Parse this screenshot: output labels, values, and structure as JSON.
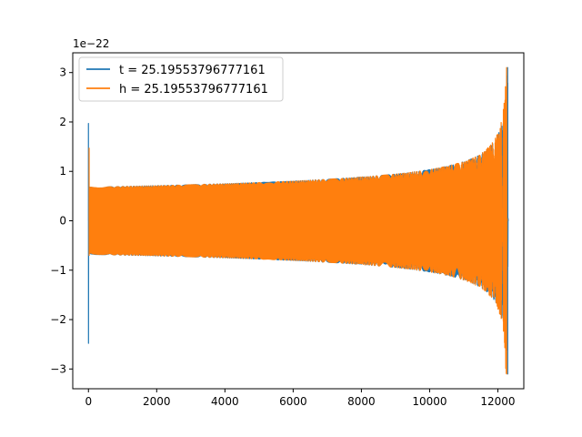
{
  "chart_data": {
    "type": "line",
    "title": "",
    "xlabel": "",
    "ylabel": "",
    "y_offset_label": "1e−22",
    "xlim": [
      -460,
      12760
    ],
    "ylim": [
      -3.4,
      3.4
    ],
    "x_ticks": [
      0,
      2000,
      4000,
      6000,
      8000,
      10000,
      12000
    ],
    "x_tick_labels": [
      "0",
      "2000",
      "4000",
      "6000",
      "8000",
      "10000",
      "12000"
    ],
    "y_ticks": [
      -3,
      -2,
      -1,
      0,
      1,
      2,
      3
    ],
    "y_tick_labels": [
      "−3",
      "−2",
      "−1",
      "0",
      "1",
      "2",
      "3"
    ],
    "grid": false,
    "legend_position": "upper-left",
    "series": [
      {
        "name": "t = 25.19553796777161",
        "color": "#1f77b4",
        "x_range": [
          0,
          12290
        ],
        "baseline_amplitude": 0.68,
        "peak_amplitude": 3.1,
        "initial_spike": [
          1.97,
          -2.48
        ],
        "merger_x": 12290,
        "x_shift": 0
      },
      {
        "name": "h = 25.19553796777161",
        "color": "#ff7f0e",
        "x_range": [
          0,
          12290
        ],
        "baseline_amplitude": 0.68,
        "peak_amplitude": 3.1,
        "initial_spike": [
          1.47,
          -0.7
        ],
        "merger_x": 12240,
        "x_shift": 20
      }
    ]
  }
}
